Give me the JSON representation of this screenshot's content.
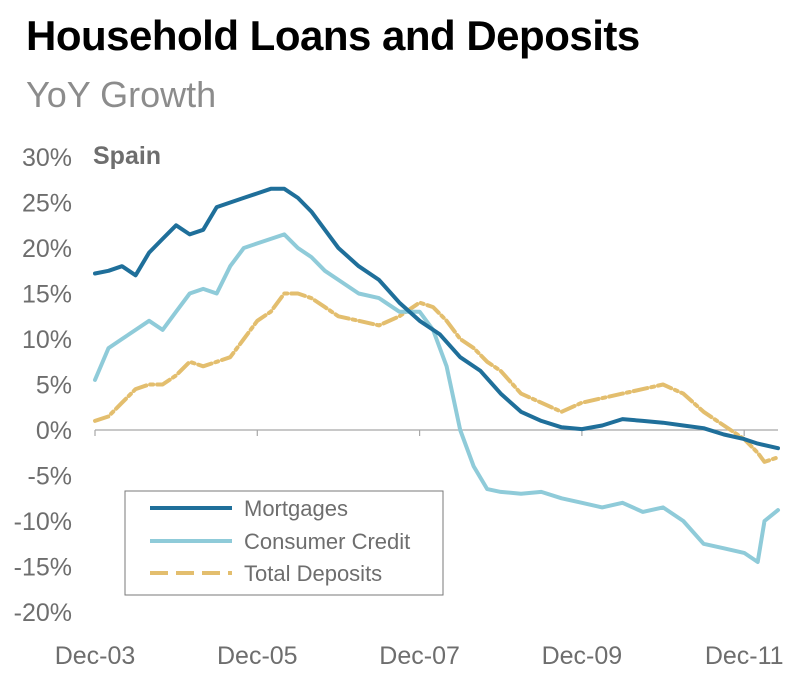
{
  "chart_data": {
    "type": "line",
    "title": "Household Loans and Deposits",
    "subtitle": "YoY Growth",
    "annotation": "Spain",
    "ylim": [
      -20,
      30
    ],
    "yticks": [
      30,
      25,
      20,
      15,
      10,
      5,
      0,
      -5,
      -10,
      -15,
      -20
    ],
    "ytick_labels": [
      "30%",
      "25%",
      "20%",
      "15%",
      "10%",
      "5%",
      "0%",
      "-5%",
      "-10%",
      "-15%",
      "-20%"
    ],
    "xlim": [
      "2003-12",
      "2012-05"
    ],
    "xticks": [
      "2003-12",
      "2005-12",
      "2007-12",
      "2009-12",
      "2011-12"
    ],
    "xtick_labels": [
      "Dec-03",
      "Dec-05",
      "Dec-07",
      "Dec-09",
      "Dec-11"
    ],
    "grid": false,
    "legend": "bottom-left",
    "series": [
      {
        "name": "Mortgages",
        "color": "#1f6f9a",
        "style": "solid",
        "x": [
          "2003-12",
          "2004-02",
          "2004-04",
          "2004-06",
          "2004-08",
          "2004-10",
          "2004-12",
          "2005-02",
          "2005-04",
          "2005-06",
          "2005-08",
          "2005-10",
          "2005-12",
          "2006-02",
          "2006-04",
          "2006-06",
          "2006-08",
          "2006-10",
          "2006-12",
          "2007-03",
          "2007-06",
          "2007-09",
          "2007-12",
          "2008-03",
          "2008-06",
          "2008-09",
          "2008-12",
          "2009-03",
          "2009-06",
          "2009-09",
          "2009-12",
          "2010-03",
          "2010-06",
          "2010-09",
          "2010-12",
          "2011-03",
          "2011-06",
          "2011-09",
          "2011-12",
          "2012-02",
          "2012-05"
        ],
        "values": [
          17.2,
          17.5,
          18.0,
          17.0,
          19.5,
          21.0,
          22.5,
          21.5,
          22.0,
          24.5,
          25.0,
          25.5,
          26.0,
          26.5,
          26.5,
          25.5,
          24.0,
          22.0,
          20.0,
          18.0,
          16.5,
          14.0,
          12.0,
          10.5,
          8.0,
          6.5,
          4.0,
          2.0,
          1.0,
          0.3,
          0.1,
          0.5,
          1.2,
          1.0,
          0.8,
          0.5,
          0.2,
          -0.5,
          -1.0,
          -1.5,
          -2.0
        ]
      },
      {
        "name": "Consumer Credit",
        "color": "#8fcbd9",
        "style": "solid",
        "x": [
          "2003-12",
          "2004-02",
          "2004-04",
          "2004-06",
          "2004-08",
          "2004-10",
          "2004-12",
          "2005-02",
          "2005-04",
          "2005-06",
          "2005-08",
          "2005-10",
          "2005-12",
          "2006-02",
          "2006-04",
          "2006-06",
          "2006-08",
          "2006-10",
          "2006-12",
          "2007-03",
          "2007-06",
          "2007-09",
          "2007-12",
          "2008-02",
          "2008-04",
          "2008-06",
          "2008-08",
          "2008-10",
          "2008-12",
          "2009-03",
          "2009-06",
          "2009-09",
          "2009-12",
          "2010-03",
          "2010-06",
          "2010-09",
          "2010-12",
          "2011-03",
          "2011-06",
          "2011-09",
          "2011-12",
          "2012-02",
          "2012-03",
          "2012-05"
        ],
        "values": [
          5.5,
          9.0,
          10.0,
          11.0,
          12.0,
          11.0,
          13.0,
          15.0,
          15.5,
          15.0,
          18.0,
          20.0,
          20.5,
          21.0,
          21.5,
          20.0,
          19.0,
          17.5,
          16.5,
          15.0,
          14.5,
          13.0,
          13.0,
          11.0,
          7.0,
          0.0,
          -4.0,
          -6.5,
          -6.8,
          -7.0,
          -6.8,
          -7.5,
          -8.0,
          -8.5,
          -8.0,
          -9.0,
          -8.5,
          -10.0,
          -12.5,
          -13.0,
          -13.5,
          -14.5,
          -10.0,
          -8.8
        ]
      },
      {
        "name": "Total Deposits",
        "color": "#e3be6e",
        "style": "dashed",
        "x": [
          "2003-12",
          "2004-02",
          "2004-04",
          "2004-06",
          "2004-08",
          "2004-10",
          "2004-12",
          "2005-02",
          "2005-04",
          "2005-06",
          "2005-08",
          "2005-10",
          "2005-12",
          "2006-02",
          "2006-04",
          "2006-06",
          "2006-08",
          "2006-10",
          "2006-12",
          "2007-03",
          "2007-06",
          "2007-09",
          "2007-12",
          "2008-02",
          "2008-04",
          "2008-06",
          "2008-08",
          "2008-10",
          "2008-12",
          "2009-03",
          "2009-06",
          "2009-09",
          "2009-12",
          "2010-03",
          "2010-06",
          "2010-09",
          "2010-12",
          "2011-03",
          "2011-06",
          "2011-09",
          "2011-12",
          "2012-02",
          "2012-03",
          "2012-05"
        ],
        "values": [
          1.0,
          1.5,
          3.0,
          4.5,
          5.0,
          5.0,
          6.0,
          7.5,
          7.0,
          7.5,
          8.0,
          10.0,
          12.0,
          13.0,
          15.0,
          15.0,
          14.5,
          13.5,
          12.5,
          12.0,
          11.5,
          12.5,
          14.0,
          13.5,
          12.0,
          10.0,
          9.0,
          7.5,
          6.5,
          4.0,
          3.0,
          2.0,
          3.0,
          3.5,
          4.0,
          4.5,
          5.0,
          4.0,
          2.0,
          0.5,
          -1.0,
          -2.5,
          -3.5,
          -3.0
        ]
      }
    ]
  }
}
